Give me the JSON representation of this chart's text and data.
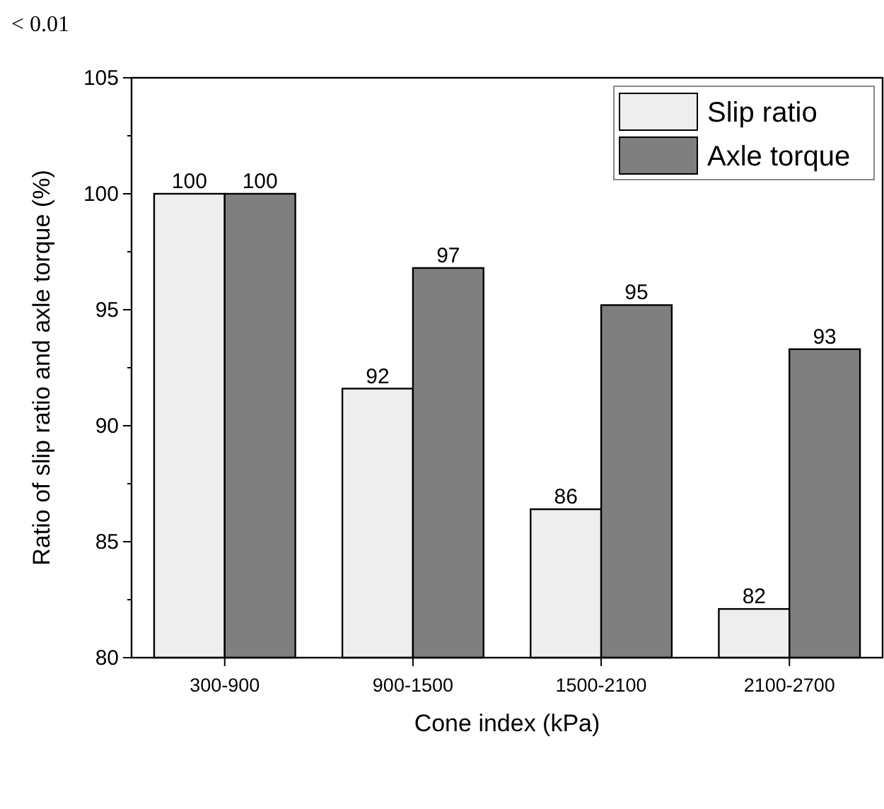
{
  "chart_data": {
    "type": "bar",
    "xlabel": "Cone index (kPa)",
    "ylabel": "Ratio of slip ratio and axle torque (%)",
    "annotations": [
      "< 0.01"
    ],
    "categories": [
      "300-900",
      "900-1500",
      "1500-2100",
      "2100-2700"
    ],
    "series": [
      {
        "name": "Slip ratio",
        "color": "#eeeeee",
        "values": [
          100,
          91.6,
          86.4,
          82.1
        ],
        "value_labels": [
          "100",
          "92",
          "86",
          "82"
        ]
      },
      {
        "name": "Axle torque",
        "color": "#7f7f7f",
        "values": [
          100,
          96.8,
          95.2,
          93.3
        ],
        "value_labels": [
          "100",
          "97",
          "95",
          "93"
        ]
      }
    ],
    "ylim": [
      80,
      105
    ],
    "yticks": [
      80,
      {
        "value": 82.5,
        "label": null
      },
      85,
      {
        "value": 87.5,
        "label": null
      },
      90,
      {
        "value": 92.5,
        "label": null
      },
      95,
      {
        "value": 97.5,
        "label": null
      },
      100,
      {
        "value": 102.5,
        "label": null
      },
      105
    ],
    "legend": "top right",
    "grid": false
  }
}
